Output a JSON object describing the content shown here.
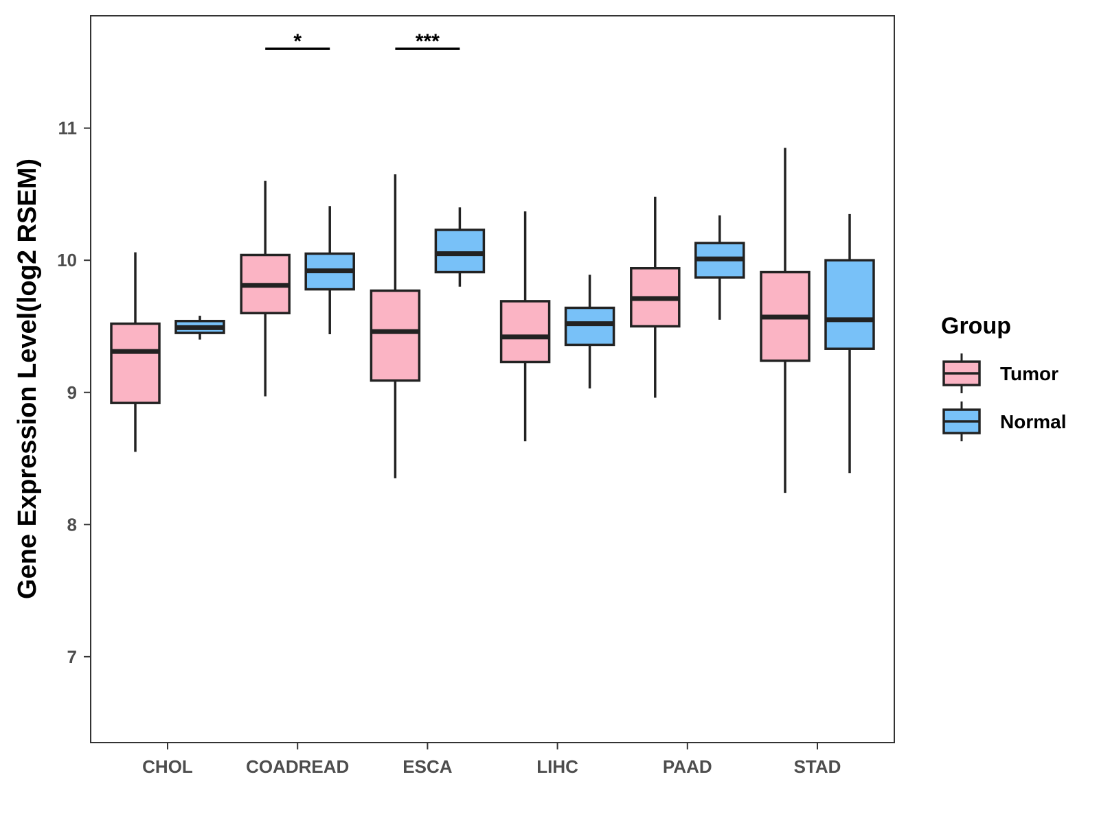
{
  "chart_data": {
    "type": "boxplot",
    "title": "",
    "xlabel": "",
    "ylabel": "Gene Expression Level(log2 RSEM)",
    "ylim": [
      6.35,
      11.85
    ],
    "yticks": [
      7,
      8,
      9,
      10,
      11
    ],
    "categories": [
      "CHOL",
      "COADREAD",
      "ESCA",
      "LIHC",
      "PAAD",
      "STAD"
    ],
    "legend": {
      "title": "Group",
      "position": "right",
      "entries": [
        {
          "name": "Tumor",
          "color": "#FBB4C4"
        },
        {
          "name": "Normal",
          "color": "#78C1F8"
        }
      ]
    },
    "series": [
      {
        "name": "Tumor",
        "color": "#FBB4C4",
        "boxes": [
          {
            "category": "CHOL",
            "min": 8.55,
            "q1": 8.92,
            "median": 9.31,
            "q3": 9.52,
            "max": 10.06
          },
          {
            "category": "COADREAD",
            "min": 8.97,
            "q1": 9.6,
            "median": 9.81,
            "q3": 10.04,
            "max": 10.6
          },
          {
            "category": "ESCA",
            "min": 8.35,
            "q1": 9.09,
            "median": 9.46,
            "q3": 9.77,
            "max": 10.65
          },
          {
            "category": "LIHC",
            "min": 8.63,
            "q1": 9.23,
            "median": 9.42,
            "q3": 9.69,
            "max": 10.37
          },
          {
            "category": "PAAD",
            "min": 8.96,
            "q1": 9.5,
            "median": 9.71,
            "q3": 9.94,
            "max": 10.48
          },
          {
            "category": "STAD",
            "min": 8.24,
            "q1": 9.24,
            "median": 9.57,
            "q3": 9.91,
            "max": 10.85
          }
        ]
      },
      {
        "name": "Normal",
        "color": "#78C1F8",
        "boxes": [
          {
            "category": "CHOL",
            "min": 9.4,
            "q1": 9.45,
            "median": 9.49,
            "q3": 9.54,
            "max": 9.58
          },
          {
            "category": "COADREAD",
            "min": 9.44,
            "q1": 9.78,
            "median": 9.92,
            "q3": 10.05,
            "max": 10.41
          },
          {
            "category": "ESCA",
            "min": 9.8,
            "q1": 9.91,
            "median": 10.05,
            "q3": 10.23,
            "max": 10.4
          },
          {
            "category": "LIHC",
            "min": 9.03,
            "q1": 9.36,
            "median": 9.52,
            "q3": 9.64,
            "max": 9.89
          },
          {
            "category": "PAAD",
            "min": 9.55,
            "q1": 9.87,
            "median": 10.01,
            "q3": 10.13,
            "max": 10.34
          },
          {
            "category": "STAD",
            "min": 8.39,
            "q1": 9.33,
            "median": 9.55,
            "q3": 10.0,
            "max": 10.35
          }
        ]
      }
    ],
    "significance": [
      {
        "category": "COADREAD",
        "label": "*",
        "y": 11.6
      },
      {
        "category": "ESCA",
        "label": "***",
        "y": 11.6
      }
    ]
  }
}
